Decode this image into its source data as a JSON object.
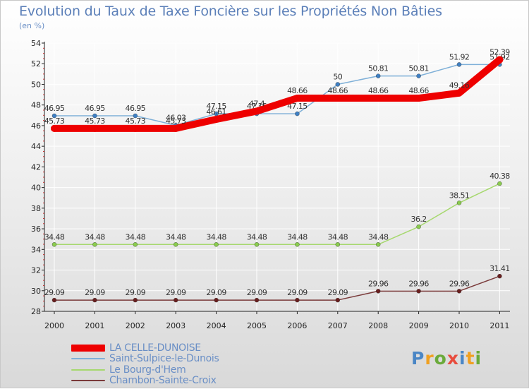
{
  "title": "Evolution du Taux de Taxe Foncière sur les Propriétés Non Bâties",
  "unit_label": "(en %)",
  "logo": {
    "text": "Proxiti",
    "colors": [
      "#4a86c5",
      "#f0a020",
      "#6aaa3a",
      "#e84c3d",
      "#4a86c5",
      "#f0a020",
      "#6aaa3a"
    ]
  },
  "chart_data": {
    "type": "line",
    "title": "Evolution du Taux de Taxe Foncière sur les Propriétés Non Bâties",
    "ylabel": "(en %)",
    "xlabel": "",
    "categories": [
      "2000",
      "2001",
      "2002",
      "2003",
      "2004",
      "2005",
      "2006",
      "2007",
      "2008",
      "2009",
      "2010",
      "2011"
    ],
    "ylim": [
      28,
      54
    ],
    "yticks": [
      28,
      30,
      32,
      34,
      36,
      38,
      40,
      42,
      44,
      46,
      48,
      50,
      52,
      54
    ],
    "legend_position": "bottom-left",
    "series": [
      {
        "name": "LA CELLE-DUNOISE",
        "color": "#ee0000",
        "emphasis": true,
        "values": [
          45.73,
          45.73,
          45.73,
          45.73,
          46.61,
          47.4,
          48.66,
          48.66,
          48.66,
          48.66,
          49.16,
          52.39
        ],
        "labels": [
          "45.73",
          "45.73",
          "45.73",
          "45.73",
          "46.61",
          "47.4",
          "48.66",
          "48.66",
          "48.66",
          "48.66",
          "49.16",
          "52.39"
        ]
      },
      {
        "name": "Saint-Sulpice-le-Dunois",
        "color": "#7fb0d8",
        "marker": "#3f80c4",
        "values": [
          46.95,
          46.95,
          46.95,
          46.03,
          47.15,
          47.15,
          47.15,
          50,
          50.81,
          50.81,
          51.92,
          51.92
        ],
        "labels": [
          "46.95",
          "46.95",
          "46.95",
          "46.03",
          "47.15",
          "47.15",
          "47.15",
          "50",
          "50.81",
          "50.81",
          "51.92",
          "51.92"
        ]
      },
      {
        "name": "Le Bourg-d'Hem",
        "color": "#a6d86e",
        "marker": "#8acc4e",
        "values": [
          34.48,
          34.48,
          34.48,
          34.48,
          34.48,
          34.48,
          34.48,
          34.48,
          34.48,
          36.2,
          38.51,
          40.38
        ],
        "labels": [
          "34.48",
          "34.48",
          "34.48",
          "34.48",
          "34.48",
          "34.48",
          "34.48",
          "34.48",
          "34.48",
          "36.2",
          "38.51",
          "40.38"
        ]
      },
      {
        "name": "Chambon-Sainte-Croix",
        "color": "#7a3a3a",
        "marker": "#6a1f1f",
        "values": [
          29.09,
          29.09,
          29.09,
          29.09,
          29.09,
          29.09,
          29.09,
          29.09,
          29.96,
          29.96,
          29.96,
          31.41
        ],
        "labels": [
          "29.09",
          "29.09",
          "29.09",
          "29.09",
          "29.09",
          "29.09",
          "29.09",
          "29.09",
          "29.96",
          "29.96",
          "29.96",
          "31.41"
        ]
      }
    ]
  }
}
